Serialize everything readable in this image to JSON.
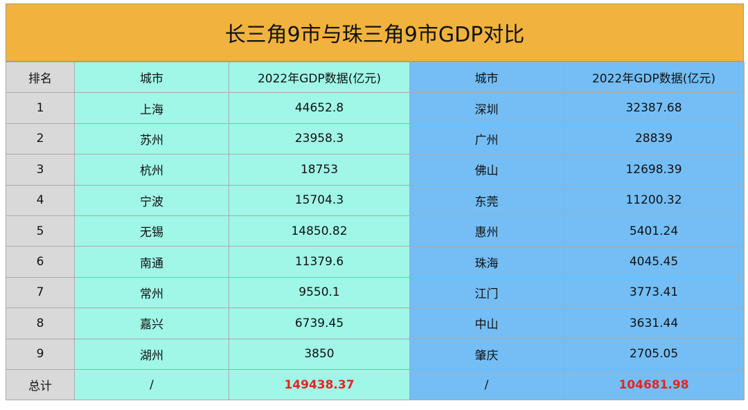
{
  "title": "长三角9市与珠三角9市GDP对比",
  "table": {
    "headers": [
      "排名",
      "城市",
      "2022年GDP数据(亿元)",
      "城市",
      "2022年GDP数据(亿元)"
    ],
    "rows": [
      [
        "1",
        "上海",
        "44652.8",
        "深圳",
        "32387.68"
      ],
      [
        "2",
        "苏州",
        "23958.3",
        "广州",
        "28839"
      ],
      [
        "3",
        "杭州",
        "18753",
        "佛山",
        "12698.39"
      ],
      [
        "4",
        "宁波",
        "15704.3",
        "东莞",
        "11200.32"
      ],
      [
        "5",
        "无锡",
        "14850.82",
        "惠州",
        "5401.24"
      ],
      [
        "6",
        "南通",
        "11379.6",
        "珠海",
        "4045.45"
      ],
      [
        "7",
        "常州",
        "9550.1",
        "江门",
        "3773.41"
      ],
      [
        "8",
        "嘉兴",
        "6739.45",
        "中山",
        "3631.44"
      ],
      [
        "9",
        "湖州",
        "3850",
        "肇庆",
        "2705.05"
      ]
    ],
    "total": [
      "总计",
      "/",
      "149438.37",
      "/",
      "104681.98"
    ]
  }
}
